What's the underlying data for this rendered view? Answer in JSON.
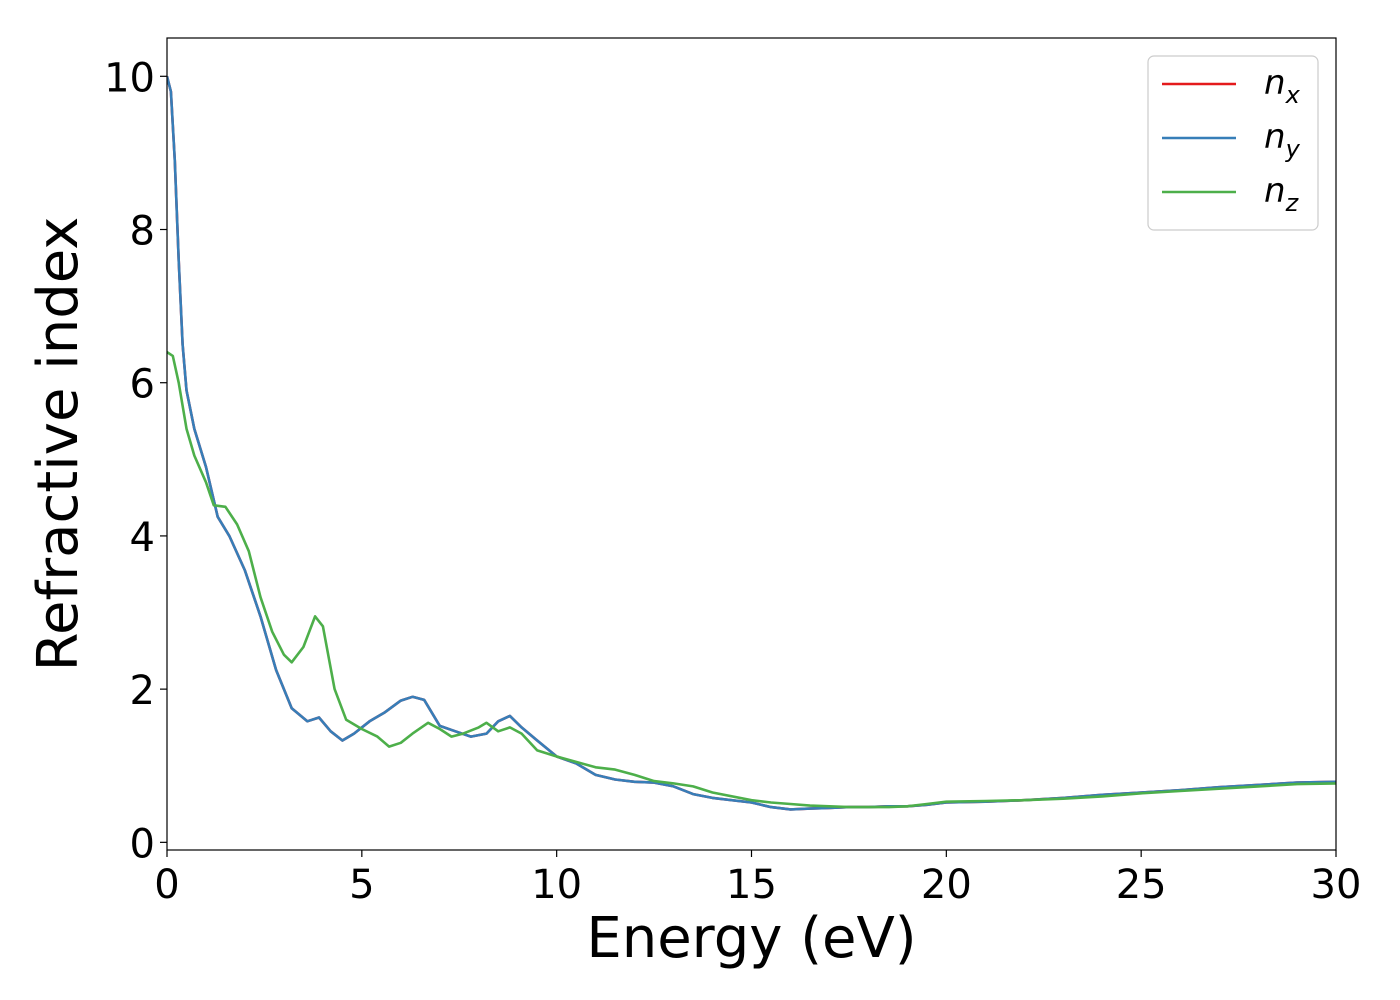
{
  "chart_data": {
    "type": "line",
    "xlabel": "Energy (eV)",
    "ylabel": "Refractive index",
    "xlim": [
      0,
      30
    ],
    "ylim": [
      -0.1,
      10.5
    ],
    "xticks": [
      0,
      5,
      10,
      15,
      20,
      25,
      30
    ],
    "yticks": [
      0,
      2,
      4,
      6,
      8,
      10
    ],
    "xtick_labels": [
      "0",
      "5",
      "10",
      "15",
      "20",
      "25",
      "30"
    ],
    "ytick_labels": [
      "0",
      "2",
      "4",
      "6",
      "8",
      "10"
    ],
    "grid": false,
    "legend_position": "top-right",
    "series": [
      {
        "name": "n",
        "subscript": "x",
        "color": "#e41a1c",
        "points": [
          [
            0,
            10.0
          ],
          [
            0.1,
            9.8
          ],
          [
            0.2,
            8.9
          ],
          [
            0.3,
            7.6
          ],
          [
            0.4,
            6.5
          ],
          [
            0.5,
            5.9
          ],
          [
            0.7,
            5.4
          ],
          [
            1.0,
            4.9
          ],
          [
            1.3,
            4.25
          ],
          [
            1.6,
            4.0
          ],
          [
            2.0,
            3.55
          ],
          [
            2.4,
            2.95
          ],
          [
            2.8,
            2.25
          ],
          [
            3.2,
            1.75
          ],
          [
            3.6,
            1.58
          ],
          [
            3.9,
            1.63
          ],
          [
            4.2,
            1.45
          ],
          [
            4.5,
            1.33
          ],
          [
            4.8,
            1.42
          ],
          [
            5.2,
            1.58
          ],
          [
            5.6,
            1.7
          ],
          [
            6.0,
            1.85
          ],
          [
            6.3,
            1.9
          ],
          [
            6.6,
            1.86
          ],
          [
            7.0,
            1.52
          ],
          [
            7.4,
            1.45
          ],
          [
            7.8,
            1.38
          ],
          [
            8.2,
            1.42
          ],
          [
            8.5,
            1.58
          ],
          [
            8.8,
            1.65
          ],
          [
            9.1,
            1.5
          ],
          [
            9.5,
            1.33
          ],
          [
            10.0,
            1.12
          ],
          [
            10.5,
            1.03
          ],
          [
            11.0,
            0.88
          ],
          [
            11.5,
            0.82
          ],
          [
            12.0,
            0.79
          ],
          [
            12.5,
            0.78
          ],
          [
            13.0,
            0.73
          ],
          [
            13.5,
            0.63
          ],
          [
            14.0,
            0.58
          ],
          [
            15.0,
            0.52
          ],
          [
            15.5,
            0.46
          ],
          [
            16.0,
            0.43
          ],
          [
            16.5,
            0.44
          ],
          [
            17.0,
            0.45
          ],
          [
            17.5,
            0.46
          ],
          [
            18.0,
            0.46
          ],
          [
            18.5,
            0.47
          ],
          [
            19.0,
            0.47
          ],
          [
            19.5,
            0.49
          ],
          [
            20.0,
            0.52
          ],
          [
            21.0,
            0.53
          ],
          [
            22.0,
            0.55
          ],
          [
            23.0,
            0.58
          ],
          [
            24.0,
            0.62
          ],
          [
            25.0,
            0.65
          ],
          [
            26.0,
            0.68
          ],
          [
            27.0,
            0.72
          ],
          [
            28.0,
            0.75
          ],
          [
            29.0,
            0.78
          ],
          [
            30.0,
            0.79
          ]
        ]
      },
      {
        "name": "n",
        "subscript": "y",
        "color": "#377eb8",
        "points": [
          [
            0,
            10.0
          ],
          [
            0.1,
            9.8
          ],
          [
            0.2,
            8.9
          ],
          [
            0.3,
            7.6
          ],
          [
            0.4,
            6.5
          ],
          [
            0.5,
            5.9
          ],
          [
            0.7,
            5.4
          ],
          [
            1.0,
            4.9
          ],
          [
            1.3,
            4.25
          ],
          [
            1.6,
            4.0
          ],
          [
            2.0,
            3.55
          ],
          [
            2.4,
            2.95
          ],
          [
            2.8,
            2.25
          ],
          [
            3.2,
            1.75
          ],
          [
            3.6,
            1.58
          ],
          [
            3.9,
            1.63
          ],
          [
            4.2,
            1.45
          ],
          [
            4.5,
            1.33
          ],
          [
            4.8,
            1.42
          ],
          [
            5.2,
            1.58
          ],
          [
            5.6,
            1.7
          ],
          [
            6.0,
            1.85
          ],
          [
            6.3,
            1.9
          ],
          [
            6.6,
            1.86
          ],
          [
            7.0,
            1.52
          ],
          [
            7.4,
            1.45
          ],
          [
            7.8,
            1.38
          ],
          [
            8.2,
            1.42
          ],
          [
            8.5,
            1.58
          ],
          [
            8.8,
            1.65
          ],
          [
            9.1,
            1.5
          ],
          [
            9.5,
            1.33
          ],
          [
            10.0,
            1.12
          ],
          [
            10.5,
            1.03
          ],
          [
            11.0,
            0.88
          ],
          [
            11.5,
            0.82
          ],
          [
            12.0,
            0.79
          ],
          [
            12.5,
            0.78
          ],
          [
            13.0,
            0.73
          ],
          [
            13.5,
            0.63
          ],
          [
            14.0,
            0.58
          ],
          [
            15.0,
            0.52
          ],
          [
            15.5,
            0.46
          ],
          [
            16.0,
            0.43
          ],
          [
            16.5,
            0.44
          ],
          [
            17.0,
            0.45
          ],
          [
            17.5,
            0.46
          ],
          [
            18.0,
            0.46
          ],
          [
            18.5,
            0.47
          ],
          [
            19.0,
            0.47
          ],
          [
            19.5,
            0.49
          ],
          [
            20.0,
            0.52
          ],
          [
            21.0,
            0.53
          ],
          [
            22.0,
            0.55
          ],
          [
            23.0,
            0.58
          ],
          [
            24.0,
            0.62
          ],
          [
            25.0,
            0.65
          ],
          [
            26.0,
            0.68
          ],
          [
            27.0,
            0.72
          ],
          [
            28.0,
            0.75
          ],
          [
            29.0,
            0.78
          ],
          [
            30.0,
            0.79
          ]
        ]
      },
      {
        "name": "n",
        "subscript": "z",
        "color": "#4daf4a",
        "points": [
          [
            0,
            6.4
          ],
          [
            0.15,
            6.35
          ],
          [
            0.3,
            6.0
          ],
          [
            0.5,
            5.4
          ],
          [
            0.7,
            5.05
          ],
          [
            1.0,
            4.7
          ],
          [
            1.2,
            4.4
          ],
          [
            1.5,
            4.38
          ],
          [
            1.8,
            4.15
          ],
          [
            2.1,
            3.8
          ],
          [
            2.4,
            3.2
          ],
          [
            2.7,
            2.75
          ],
          [
            3.0,
            2.45
          ],
          [
            3.2,
            2.35
          ],
          [
            3.5,
            2.55
          ],
          [
            3.8,
            2.95
          ],
          [
            4.0,
            2.82
          ],
          [
            4.3,
            2.0
          ],
          [
            4.6,
            1.6
          ],
          [
            5.0,
            1.48
          ],
          [
            5.4,
            1.38
          ],
          [
            5.7,
            1.25
          ],
          [
            6.0,
            1.3
          ],
          [
            6.3,
            1.42
          ],
          [
            6.7,
            1.56
          ],
          [
            7.0,
            1.48
          ],
          [
            7.3,
            1.38
          ],
          [
            7.6,
            1.42
          ],
          [
            8.0,
            1.5
          ],
          [
            8.2,
            1.56
          ],
          [
            8.5,
            1.45
          ],
          [
            8.8,
            1.5
          ],
          [
            9.1,
            1.42
          ],
          [
            9.5,
            1.2
          ],
          [
            10.0,
            1.12
          ],
          [
            10.5,
            1.05
          ],
          [
            11.0,
            0.98
          ],
          [
            11.5,
            0.95
          ],
          [
            12.0,
            0.88
          ],
          [
            12.5,
            0.8
          ],
          [
            13.0,
            0.77
          ],
          [
            13.5,
            0.73
          ],
          [
            14.0,
            0.65
          ],
          [
            15.0,
            0.55
          ],
          [
            15.5,
            0.52
          ],
          [
            16.0,
            0.5
          ],
          [
            16.5,
            0.48
          ],
          [
            17.0,
            0.47
          ],
          [
            17.5,
            0.46
          ],
          [
            18.0,
            0.46
          ],
          [
            18.5,
            0.46
          ],
          [
            19.0,
            0.47
          ],
          [
            19.5,
            0.5
          ],
          [
            20.0,
            0.53
          ],
          [
            21.0,
            0.54
          ],
          [
            22.0,
            0.55
          ],
          [
            23.0,
            0.57
          ],
          [
            24.0,
            0.6
          ],
          [
            25.0,
            0.64
          ],
          [
            26.0,
            0.67
          ],
          [
            27.0,
            0.7
          ],
          [
            28.0,
            0.73
          ],
          [
            29.0,
            0.76
          ],
          [
            30.0,
            0.77
          ]
        ]
      }
    ]
  }
}
